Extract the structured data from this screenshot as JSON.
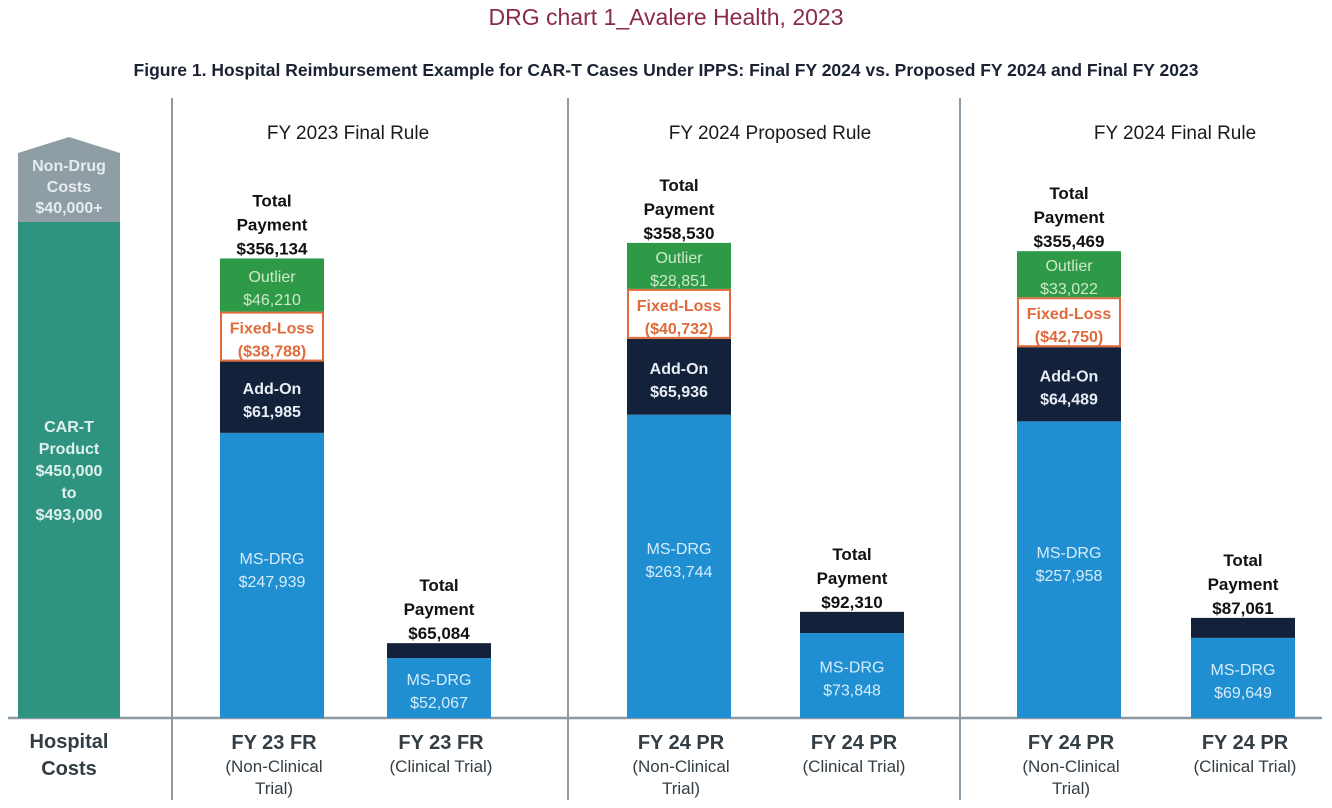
{
  "header": "DRG chart 1_Avalere Health, 2023",
  "chart_data": {
    "type": "bar",
    "stacked": true,
    "title": "Figure 1. Hospital Reimbursement Example for CAR-T Cases Under IPPS: Final FY 2024 vs. Proposed FY 2024 and Final FY 2023",
    "grid": false,
    "hospital_costs": {
      "label": [
        "Hospital",
        "Costs"
      ],
      "segments": [
        {
          "label": [
            "CAR-T",
            "Product",
            "$450,000",
            "to",
            "$493,000"
          ],
          "color": "#2e9480"
        },
        {
          "label": [
            "Non-Drug",
            "Costs",
            "$40,000+"
          ],
          "color": "#8f9ea5"
        }
      ]
    },
    "panels": [
      {
        "title": "FY 2023 Final Rule",
        "bars": [
          {
            "category": [
              "FY 23 FR",
              "(Non-Clinical",
              "Trial)"
            ],
            "total": 356134,
            "total_label": [
              "Total",
              "Payment",
              "$356,134"
            ],
            "segments": [
              {
                "name": "MS-DRG",
                "value": 247939,
                "label": [
                  "MS-DRG",
                  "$247,939"
                ]
              },
              {
                "name": "Add-On",
                "value": 61985,
                "label": [
                  "Add-On",
                  "$61,985"
                ]
              },
              {
                "name": "Fixed-Loss",
                "value": 38788,
                "label": [
                  "Fixed-Loss",
                  "($38,788)"
                ]
              },
              {
                "name": "Outlier",
                "value": 46210,
                "label": [
                  "Outlier",
                  "$46,210"
                ]
              }
            ]
          },
          {
            "category": [
              "FY 23 FR",
              "(Clinical Trial)"
            ],
            "total": 65084,
            "total_label": [
              "Total",
              "Payment",
              "$65,084"
            ],
            "segments": [
              {
                "name": "MS-DRG",
                "value": 52067,
                "label": [
                  "MS-DRG",
                  "$52,067"
                ]
              },
              {
                "name": "Add-On",
                "value": 13017,
                "label": []
              }
            ]
          }
        ]
      },
      {
        "title": "FY 2024 Proposed Rule",
        "bars": [
          {
            "category": [
              "FY 24 PR",
              "(Non-Clinical",
              "Trial)"
            ],
            "total": 358530,
            "total_label": [
              "Total",
              "Payment",
              "$358,530"
            ],
            "segments": [
              {
                "name": "MS-DRG",
                "value": 263744,
                "label": [
                  "MS-DRG",
                  "$263,744"
                ]
              },
              {
                "name": "Add-On",
                "value": 65936,
                "label": [
                  "Add-On",
                  "$65,936"
                ]
              },
              {
                "name": "Fixed-Loss",
                "value": 40732,
                "label": [
                  "Fixed-Loss",
                  "($40,732)"
                ]
              },
              {
                "name": "Outlier",
                "value": 28851,
                "label": [
                  "Outlier",
                  "$28,851"
                ]
              }
            ]
          },
          {
            "category": [
              "FY 24 PR",
              "(Clinical Trial)"
            ],
            "total": 92310,
            "total_label": [
              "Total",
              "Payment",
              "$92,310"
            ],
            "segments": [
              {
                "name": "MS-DRG",
                "value": 73848,
                "label": [
                  "MS-DRG",
                  "$73,848"
                ]
              },
              {
                "name": "Add-On",
                "value": 18462,
                "label": []
              }
            ]
          }
        ]
      },
      {
        "title": "FY 2024 Final Rule",
        "bars": [
          {
            "category": [
              "FY 24 PR",
              "(Non-Clinical",
              "Trial)"
            ],
            "total": 355469,
            "total_label": [
              "Total",
              "Payment",
              "$355,469"
            ],
            "segments": [
              {
                "name": "MS-DRG",
                "value": 257958,
                "label": [
                  "MS-DRG",
                  "$257,958"
                ]
              },
              {
                "name": "Add-On",
                "value": 64489,
                "label": [
                  "Add-On",
                  "$64,489"
                ]
              },
              {
                "name": "Fixed-Loss",
                "value": 42750,
                "label": [
                  "Fixed-Loss",
                  "($42,750)"
                ]
              },
              {
                "name": "Outlier",
                "value": 33022,
                "label": [
                  "Outlier",
                  "$33,022"
                ]
              }
            ]
          },
          {
            "category": [
              "FY 24 PR",
              "(Clinical Trial)"
            ],
            "total": 87061,
            "total_label": [
              "Total",
              "Payment",
              "$87,061"
            ],
            "segments": [
              {
                "name": "MS-DRG",
                "value": 69649,
                "label": [
                  "MS-DRG",
                  "$69,649"
                ]
              },
              {
                "name": "Add-On",
                "value": 17412,
                "label": []
              }
            ]
          }
        ]
      }
    ],
    "colors": {
      "MS-DRG": "#1f8fd2",
      "Add-On": "#14213a",
      "Fixed-Loss": "#e06a3a",
      "Outlier": "#2e9a48"
    }
  }
}
